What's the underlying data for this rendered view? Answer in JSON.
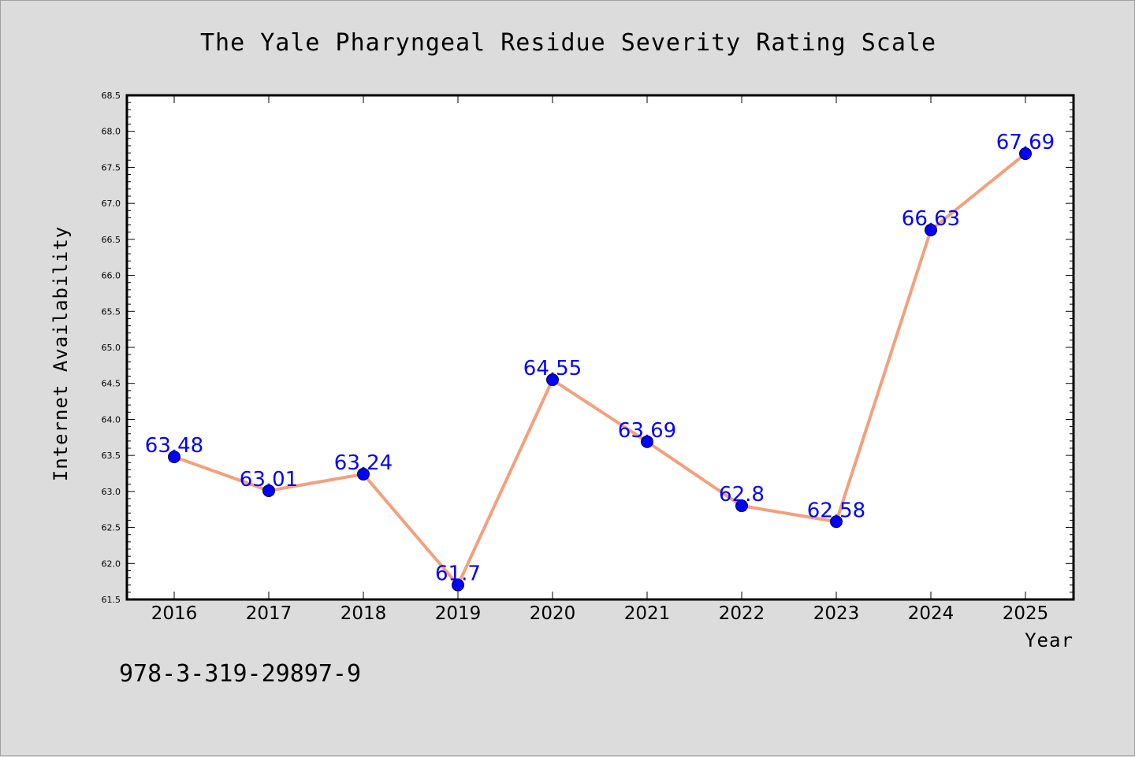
{
  "chart_data": {
    "type": "line",
    "title": "The Yale Pharyngeal Residue Severity Rating Scale",
    "xlabel": "Year",
    "ylabel": "Internet Availability",
    "categories": [
      "2016",
      "2017",
      "2018",
      "2019",
      "2020",
      "2021",
      "2022",
      "2023",
      "2024",
      "2025"
    ],
    "values": [
      63.48,
      63.01,
      63.24,
      61.7,
      64.55,
      63.69,
      62.8,
      62.58,
      66.63,
      67.69
    ],
    "data_labels": [
      "63.48",
      "63.01",
      "63.24",
      "61.7",
      "64.55",
      "63.69",
      "62.8",
      "62.58",
      "66.63",
      "67.69"
    ],
    "ylim": [
      61.5,
      68.5
    ],
    "yticks": [
      "61.5",
      "62.0",
      "62.5",
      "63.0",
      "63.5",
      "64.0",
      "64.5",
      "65.0",
      "65.5",
      "66.0",
      "66.5",
      "67.0",
      "67.5",
      "68.0",
      "68.5"
    ],
    "grid": false,
    "line_color": "#f4a07c",
    "marker_color": "#0000ff",
    "label_color": "#0000ff"
  },
  "footer_text": "978-3-319-29897-9"
}
